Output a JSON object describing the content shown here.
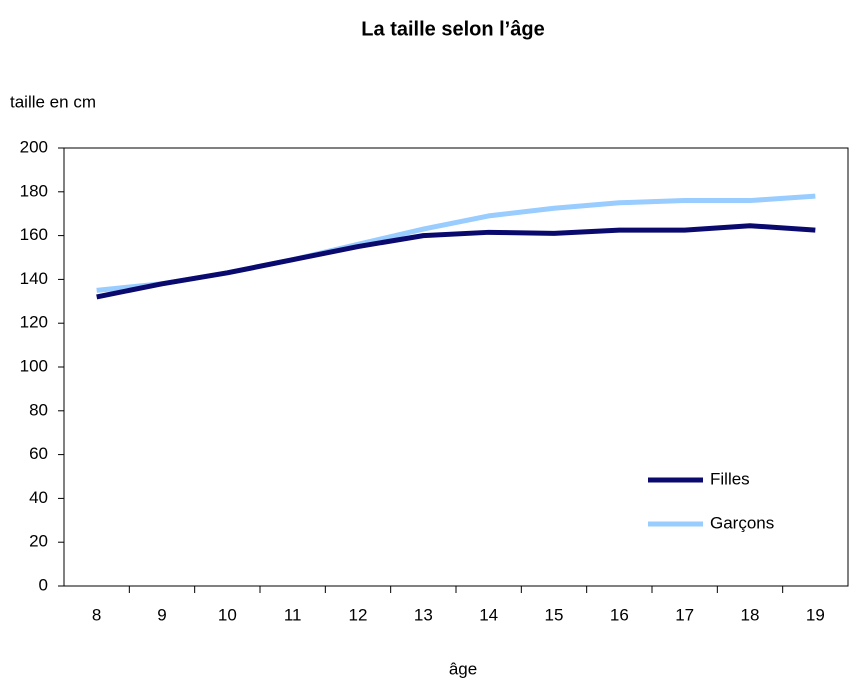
{
  "chart_data": {
    "type": "line",
    "title": "La taille selon l’âge",
    "y_label": "taille en cm",
    "x_label": "âge",
    "categories": [
      "8",
      "9",
      "10",
      "11",
      "12",
      "13",
      "14",
      "15",
      "16",
      "17",
      "18",
      "19"
    ],
    "series": [
      {
        "name": "Filles",
        "color": "#0a0a6e",
        "values": [
          132,
          138,
          143,
          149,
          155,
          160,
          161.5,
          161,
          162.5,
          162.5,
          164.5,
          162.5
        ]
      },
      {
        "name": "Garçons",
        "color": "#99ccff",
        "values": [
          135,
          138,
          143,
          149,
          156,
          163,
          169,
          172.5,
          175,
          176,
          176,
          178
        ]
      }
    ],
    "ylim": [
      0,
      200
    ],
    "yticks": [
      0,
      20,
      40,
      60,
      80,
      100,
      120,
      140,
      160,
      180,
      200
    ],
    "grid": false,
    "legend": "lower-right"
  }
}
